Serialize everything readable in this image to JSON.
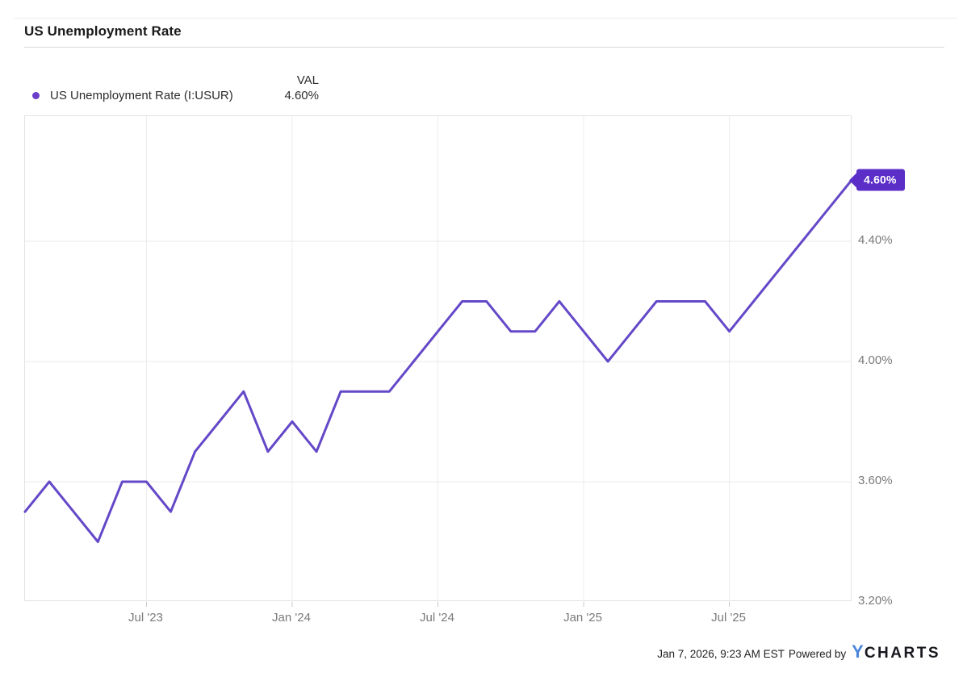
{
  "header": {
    "title": "US Unemployment Rate"
  },
  "legend": {
    "series_label": "US Unemployment Rate (I:USUR)",
    "val_header": "VAL",
    "val": "4.60%",
    "dot_color": "#6a3ecb"
  },
  "chart_data": {
    "type": "line",
    "title": "US Unemployment Rate",
    "series_name": "US Unemployment Rate (I:USUR)",
    "unit": "percent",
    "x": [
      "Feb '23",
      "Mar '23",
      "Apr '23",
      "May '23",
      "Jun '23",
      "Jul '23",
      "Aug '23",
      "Sep '23",
      "Oct '23",
      "Nov '23",
      "Dec '23",
      "Jan '24",
      "Feb '24",
      "Mar '24",
      "Apr '24",
      "May '24",
      "Jun '24",
      "Jul '24",
      "Aug '24",
      "Sep '24",
      "Oct '24",
      "Nov '24",
      "Dec '24",
      "Jan '25",
      "Feb '25",
      "Mar '25",
      "Apr '25",
      "May '25",
      "Jun '25",
      "Jul '25",
      "Aug '25",
      "Sep '25",
      "Oct '25",
      "Nov '25",
      "Dec '25"
    ],
    "values": [
      3.5,
      3.6,
      3.5,
      3.4,
      3.6,
      3.6,
      3.5,
      3.7,
      3.8,
      3.9,
      3.7,
      3.8,
      3.7,
      3.9,
      3.9,
      3.9,
      4.0,
      4.1,
      4.2,
      4.2,
      4.1,
      4.1,
      4.2,
      4.1,
      4.0,
      4.1,
      4.2,
      4.2,
      4.2,
      4.1,
      4.2,
      4.3,
      4.4,
      4.5,
      4.6
    ],
    "ylim": [
      3.2,
      4.816
    ],
    "yticks": [
      {
        "value": 4.4,
        "label": "4.40%",
        "gridline": true
      },
      {
        "value": 4.0,
        "label": "4.00%",
        "gridline": true
      },
      {
        "value": 3.6,
        "label": "3.60%",
        "gridline": true
      },
      {
        "value": 3.2,
        "label": "3.20%",
        "gridline": false
      }
    ],
    "xticks": [
      {
        "index": 5,
        "label": "Jul '23"
      },
      {
        "index": 11,
        "label": "Jan '24"
      },
      {
        "index": 17,
        "label": "Jul '24"
      },
      {
        "index": 23,
        "label": "Jan '25"
      },
      {
        "index": 29,
        "label": "Jul '25"
      }
    ],
    "grid": true,
    "legend_position": "top-left",
    "line_color": "#6448c8",
    "badge_color": "#5b2ec8",
    "last_value_label": "4.60%"
  },
  "footer": {
    "timestamp": "Jan 7, 2026, 9:23 AM EST",
    "powered_by": "Powered by",
    "logo_y": "Y",
    "logo_rest": "CHARTS",
    "logo_y_color": "#4a86db"
  }
}
